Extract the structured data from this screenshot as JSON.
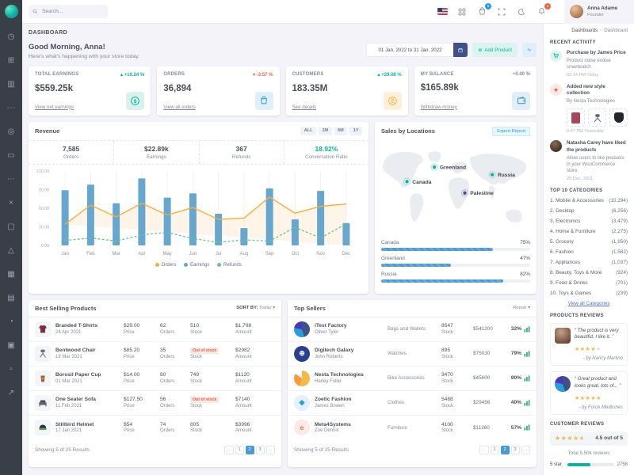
{
  "header": {
    "search_placeholder": "Search...",
    "bag_badge": "5",
    "bell_badge": "3",
    "user": {
      "name": "Anna Adame",
      "role": "Founder"
    }
  },
  "page": {
    "title": "DASHBOARD",
    "breadcrumb_parent": "Dashboards",
    "breadcrumb_current": "Dashboard"
  },
  "greeting": {
    "title": "Good Morning, Anna!",
    "subtitle": "Here's what's happening with your store today.",
    "date_range": "01 Jan, 2022 to 31 Jan, 2022",
    "add_product_label": "Add Product",
    "add_product_icon": "⊕"
  },
  "stats": [
    {
      "label": "TOTAL EARNINGS",
      "arrow": "▴",
      "delta": "+16.24 %",
      "value": "$559.25k",
      "link": "View net earnings"
    },
    {
      "label": "ORDERS",
      "arrow": "▾",
      "delta": "-3.57 %",
      "value": "36,894",
      "link": "View all orders"
    },
    {
      "label": "CUSTOMERS",
      "arrow": "▴",
      "delta": "+29.08 %",
      "value": "183.35M",
      "link": "See details"
    },
    {
      "label": "MY BALANCE",
      "arrow": "",
      "delta": "+0.00 %",
      "value": "$165.89k",
      "link": "Withdraw money"
    }
  ],
  "revenue": {
    "title": "Revenue",
    "ranges": [
      "ALL",
      "1M",
      "6M",
      "1Y"
    ],
    "kpis": [
      {
        "value": "7,585",
        "label": "Orders"
      },
      {
        "value": "$22.89k",
        "label": "Earnings"
      },
      {
        "value": "367",
        "label": "Refunds"
      },
      {
        "value": "18.92%",
        "label": "Conversation Ratio"
      }
    ]
  },
  "chart_data": {
    "type": "mixed",
    "title": "Revenue",
    "x": [
      "Jan",
      "Feb",
      "Mar",
      "Apr",
      "May",
      "Jun",
      "Jul",
      "Aug",
      "Sep",
      "Oct",
      "Nov",
      "Dec"
    ],
    "series": [
      {
        "name": "Orders",
        "type": "area",
        "color": "#f6ad3e",
        "values": [
          34,
          65,
          46,
          68,
          49,
          61,
          42,
          44,
          78,
          52,
          63,
          67
        ]
      },
      {
        "name": "Earnings",
        "type": "bar",
        "color": "#67a6ce",
        "values": [
          89,
          98,
          68,
          108,
          77,
          84,
          51,
          28,
          92,
          42,
          88,
          36
        ]
      },
      {
        "name": "Refunds",
        "type": "dashed-line",
        "color": "#63c793",
        "values": [
          8,
          12,
          7,
          17,
          21,
          11,
          5,
          9,
          7,
          29,
          12,
          35
        ]
      }
    ],
    "ylim": [
      0,
      120
    ],
    "yticks": [
      "0.00",
      "30.00",
      "60.00",
      "90.00",
      "120.00"
    ],
    "legend_position": "bottom",
    "grid": "vertical"
  },
  "locations": {
    "title": "Sales by Locations",
    "export_label": "Export Report",
    "markers": [
      {
        "name": "Greenland"
      },
      {
        "name": "Canada"
      },
      {
        "name": "Russia"
      },
      {
        "name": "Palestine"
      }
    ],
    "rows": [
      {
        "name": "Canada",
        "pct": 75,
        "pct_text": "75%"
      },
      {
        "name": "Greenland",
        "pct": 47,
        "pct_text": "47%"
      },
      {
        "name": "Russia",
        "pct": 82,
        "pct_text": "82%"
      }
    ]
  },
  "best_selling": {
    "title": "Best Selling Products",
    "sort_label": "SORT BY:",
    "sort_value": "Today ▾",
    "col_labels": {
      "price": "Price",
      "orders": "Orders",
      "stock": "Stock",
      "amount": "Amount"
    },
    "rows": [
      {
        "name": "Branded T-Shirts",
        "date": "24 Apr 2021",
        "price": "$29.00",
        "orders": "62",
        "stock": "510",
        "amount": "$1,798"
      },
      {
        "name": "Bentwood Chair",
        "date": "19 Mar 2021",
        "price": "$85.20",
        "orders": "35",
        "stock": "Out of stock",
        "amount": "$2982"
      },
      {
        "name": "Borosil Paper Cup",
        "date": "01 Mar 2021",
        "price": "$14.00",
        "orders": "80",
        "stock": "749",
        "amount": "$1120"
      },
      {
        "name": "One Seater Sofa",
        "date": "11 Feb 2021",
        "price": "$127.50",
        "orders": "56",
        "stock": "Out of stock",
        "amount": "$7140"
      },
      {
        "name": "Stillbird Helmet",
        "date": "17 Jan 2021",
        "price": "$54",
        "orders": "74",
        "stock": "805",
        "amount": "$3996"
      }
    ],
    "footer": "Showing 5 of 25 Results",
    "pagination": [
      "←",
      "1",
      "2",
      "3",
      "→"
    ]
  },
  "top_sellers": {
    "title": "Top Sellers",
    "report_label": "Report ▾",
    "stock_label": "Stock",
    "rows": [
      {
        "company": "iTest Factory",
        "person": "Oliver Tyler",
        "category": "Bags and Wallets",
        "stock": "8547",
        "amount": "$541200",
        "pct": "32%"
      },
      {
        "company": "Digitech Galaxy",
        "person": "John Roberts",
        "category": "Watches",
        "stock": "895",
        "amount": "$75030",
        "pct": "79%"
      },
      {
        "company": "Nesta Technologies",
        "person": "Harley Fuller",
        "category": "Bike Accessories",
        "stock": "3470",
        "amount": "$45600",
        "pct": "90%"
      },
      {
        "company": "Zoetic Fashion",
        "person": "James Bowen",
        "category": "Clothes",
        "stock": "5488",
        "amount": "$29456",
        "pct": "40%"
      },
      {
        "company": "Meta4Systems",
        "person": "Zoe Dennis",
        "category": "Furniture",
        "stock": "4100",
        "amount": "$11260",
        "pct": "57%"
      }
    ],
    "footer": "Showing 5 of 25 Results",
    "pagination": [
      "←",
      "1",
      "2",
      "3",
      "→"
    ]
  },
  "activity": {
    "title": "RECENT ACTIVITY",
    "items": [
      {
        "title": "Purchase by James Price",
        "desc": "Product noise evolve smartwatch",
        "time": "02:14 PM Today"
      },
      {
        "title": "Added new style collection",
        "desc": "By Nesta Technologies",
        "time": "9:47 PM Yesterday"
      },
      {
        "title": "Natasha Carey have liked the products",
        "desc": "Allow users to like products in your WooCommerce store.",
        "time": "25 Dec, 2021"
      }
    ]
  },
  "categories": {
    "title": "TOP 10 CATEGORIES",
    "items": [
      {
        "name": "1. Mobile & Accessories",
        "count": "(10,294)"
      },
      {
        "name": "2. Desktop",
        "count": "(6,256)"
      },
      {
        "name": "3. Electronics",
        "count": "(3,479)"
      },
      {
        "name": "4. Home & Furniture",
        "count": "(2,275)"
      },
      {
        "name": "5. Grocery",
        "count": "(1,950)"
      },
      {
        "name": "6. Fashion",
        "count": "(1,582)"
      },
      {
        "name": "7. Appliances",
        "count": "(1,037)"
      },
      {
        "name": "8. Beauty, Toys & More",
        "count": "(924)"
      },
      {
        "name": "9. Food & Drinks",
        "count": "(701)"
      },
      {
        "name": "10. Toys & Games",
        "count": "(239)"
      }
    ],
    "link": "View all Categories"
  },
  "product_reviews": {
    "title": "PRODUCTS REVIEWS",
    "items": [
      {
        "quote": "“ The product is very beautiful. I like it. ”",
        "rating": 4,
        "by": "- by Nancy Martino"
      },
      {
        "quote": "“ Great product and looks great, lots of... ”",
        "rating": 5,
        "by": "- by Force Medicines"
      }
    ]
  },
  "customer_reviews": {
    "title": "CUSTOMER REVIEWS",
    "rating": 4.5,
    "rating_text": "4.5 out of 5",
    "total": "Total 5.50k reviews",
    "breakdown": [
      {
        "label": "5 star",
        "pct": 50,
        "count": "2758"
      }
    ]
  },
  "sidebar": {
    "icons": [
      {
        "name": "dashboards",
        "glyph": "◷"
      },
      {
        "name": "apps",
        "glyph": "⊞"
      },
      {
        "name": "layouts",
        "glyph": "▥"
      },
      {
        "name": "pages-more",
        "glyph": "⋯"
      },
      {
        "name": "authentication",
        "glyph": "◎"
      },
      {
        "name": "pages",
        "glyph": "▭"
      },
      {
        "name": "components-more",
        "glyph": "⋯"
      },
      {
        "name": "base-ui",
        "glyph": "×"
      },
      {
        "name": "widgets",
        "glyph": "▢"
      },
      {
        "name": "advance-ui",
        "glyph": "△"
      },
      {
        "name": "forms",
        "glyph": "▦"
      },
      {
        "name": "tables",
        "glyph": "▤"
      },
      {
        "name": "charts",
        "glyph": "◔"
      },
      {
        "name": "icons",
        "glyph": "▣"
      },
      {
        "name": "maps",
        "glyph": "▫"
      },
      {
        "name": "multilevel",
        "glyph": "↗"
      }
    ]
  },
  "colors": {
    "primary": "#405189",
    "success": "#0ab39c",
    "info": "#299cdb",
    "warning": "#f7b84b",
    "danger": "#f06548",
    "bar_blue": "#67a6ce"
  }
}
